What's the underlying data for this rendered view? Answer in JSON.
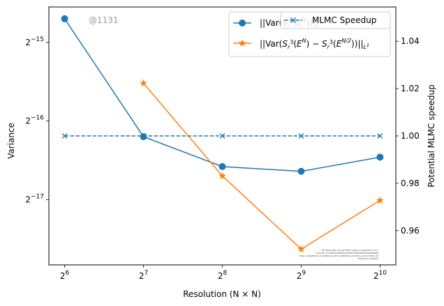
{
  "chart_data": {
    "type": "line",
    "xlabel": "Resolution (N × N)",
    "ylabel_left": "Variance",
    "ylabel_right": "Potential MLMC speedup",
    "x_ticks": [
      {
        "base": "2",
        "exp": "6"
      },
      {
        "base": "2",
        "exp": "7"
      },
      {
        "base": "2",
        "exp": "8"
      },
      {
        "base": "2",
        "exp": "9"
      },
      {
        "base": "2",
        "exp": "10"
      }
    ],
    "y_left_scale": "log2",
    "y_left_ticks": [
      {
        "base": "2",
        "exp": "−15"
      },
      {
        "base": "2",
        "exp": "−16"
      },
      {
        "base": "2",
        "exp": "−17"
      }
    ],
    "y_right_ticks": [
      "0.96",
      "0.98",
      "1.00",
      "1.02",
      "1.04"
    ],
    "y_right_ylim": [
      0.9455,
      1.0545
    ],
    "x_log2_range": [
      5.8,
      10.2
    ],
    "y_left_log2_range": [
      -17.83,
      -14.55
    ],
    "series": [
      {
        "name": "||Var(S_r^3(E^N))||_{L^2}",
        "axis": "left",
        "color": "#1f77b4",
        "marker": "circle",
        "dashed": false,
        "x_log2": [
          6,
          7,
          8,
          9,
          10
        ],
        "y_log2": [
          -14.7,
          -16.2,
          -16.58,
          -16.64,
          -16.46
        ]
      },
      {
        "name": "||Var(S_r^3(E^N) − S_r^3(E^{N/2}))||_{L^2}",
        "axis": "left",
        "color": "#ff7f0e",
        "marker": "star",
        "dashed": false,
        "x_log2": [
          7,
          8,
          9,
          10
        ],
        "y_log2": [
          -15.52,
          -16.7,
          -17.63,
          -17.01
        ]
      },
      {
        "name": "MLMC Speedup",
        "axis": "right",
        "color": "#1f77b4",
        "marker": "x",
        "dashed": true,
        "x_log2": [
          6,
          7,
          8,
          9,
          10
        ],
        "y": [
          1.0,
          1.0,
          1.0,
          1.0,
          1.0
        ]
      }
    ],
    "legend_placement": "top-right",
    "grid": false,
    "watermark": "@1131",
    "credits": [
      "By Kjetil Olsen Lye @ ETHZ <kjetil.o.lye@gmail.com>",
      "Commit: 1111581d2dd8dee7220b4d7967268b43b6ba8488",
      "Repo: git@github.com:kjetil-lye/mlmc_statistical_solutions_experiments.git",
      "Hostname: galerkin"
    ]
  }
}
